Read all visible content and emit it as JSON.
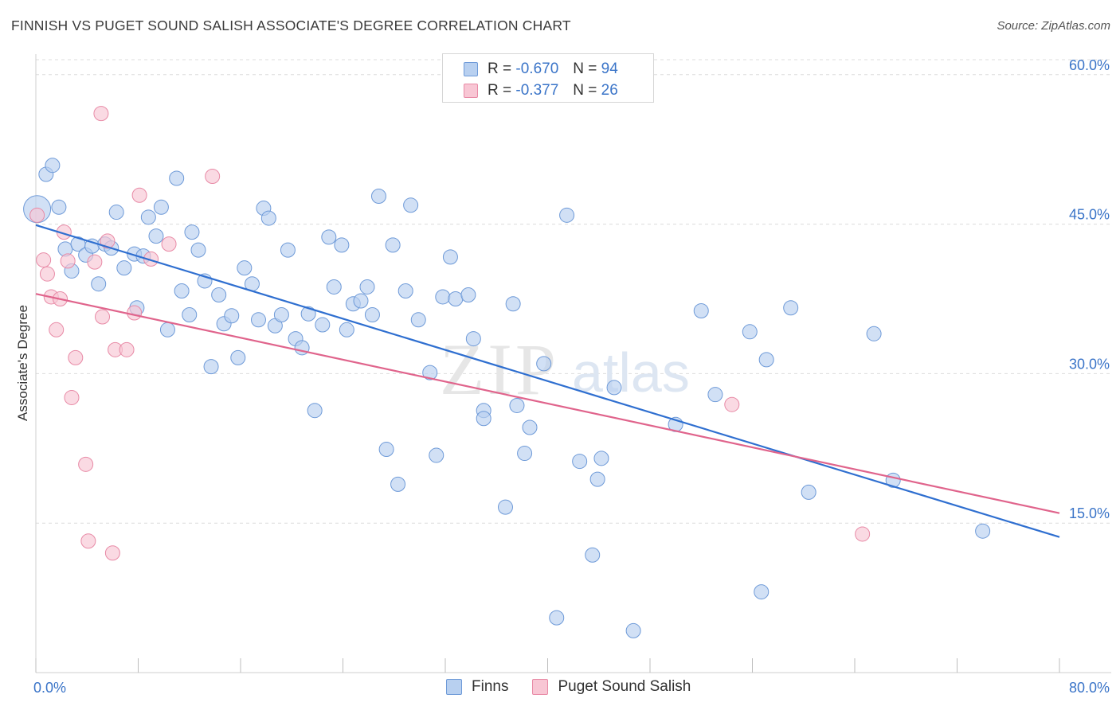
{
  "header": {
    "title": "FINNISH VS PUGET SOUND SALISH ASSOCIATE'S DEGREE CORRELATION CHART",
    "source": "Source: ZipAtlas.com"
  },
  "watermark": {
    "zip": "ZIP",
    "atlas": "atlas"
  },
  "legend_top": {
    "rows": [
      {
        "r_label": "R =",
        "r_value": "-0.670",
        "n_label": "N =",
        "n_value": "94"
      },
      {
        "r_label": "R =",
        "r_value": "-0.377",
        "n_label": "N =",
        "n_value": "26"
      }
    ]
  },
  "legend_bottom": {
    "items": [
      {
        "label": "Finns"
      },
      {
        "label": "Puget Sound Salish"
      }
    ]
  },
  "colors": {
    "finns_fill": "#b8d0f0",
    "finns_stroke": "#6e9ad8",
    "finns_line": "#2f6fd0",
    "salish_fill": "#f8c6d4",
    "salish_stroke": "#e88aa6",
    "salish_line": "#e0648c",
    "tick_label": "#3a74c8",
    "grid": "#dcdcdc"
  },
  "chart_data": {
    "type": "scatter",
    "title": "FINNISH VS PUGET SOUND SALISH ASSOCIATE'S DEGREE CORRELATION CHART",
    "xlabel": "",
    "ylabel": "Associate's Degree",
    "xlim": [
      0,
      80
    ],
    "ylim": [
      0,
      61.5
    ],
    "x_tick_labels": [
      "0.0%",
      "80.0%"
    ],
    "y_ticks": [
      15,
      30,
      45,
      60
    ],
    "y_tick_labels": [
      "15.0%",
      "30.0%",
      "45.0%",
      "60.0%"
    ],
    "grid": "horizontal dashed",
    "legend": "top-center",
    "series": [
      {
        "name": "Finns",
        "r": -0.67,
        "n": 94,
        "trend": {
          "x": [
            0,
            80
          ],
          "y": [
            44.9,
            13.6
          ]
        },
        "points": [
          {
            "x": 0.1,
            "y": 46.5,
            "big": true
          },
          {
            "x": 0.8,
            "y": 50.0
          },
          {
            "x": 1.3,
            "y": 50.9
          },
          {
            "x": 1.8,
            "y": 46.7
          },
          {
            "x": 2.3,
            "y": 42.5
          },
          {
            "x": 2.8,
            "y": 40.3
          },
          {
            "x": 3.3,
            "y": 43.0
          },
          {
            "x": 3.9,
            "y": 41.9
          },
          {
            "x": 4.4,
            "y": 42.8
          },
          {
            "x": 4.9,
            "y": 39.0
          },
          {
            "x": 5.4,
            "y": 43.0
          },
          {
            "x": 5.9,
            "y": 42.6
          },
          {
            "x": 6.3,
            "y": 46.2
          },
          {
            "x": 6.9,
            "y": 40.6
          },
          {
            "x": 7.7,
            "y": 42.0
          },
          {
            "x": 7.9,
            "y": 36.6
          },
          {
            "x": 8.4,
            "y": 41.8
          },
          {
            "x": 8.8,
            "y": 45.7
          },
          {
            "x": 9.4,
            "y": 43.8
          },
          {
            "x": 9.8,
            "y": 46.7
          },
          {
            "x": 10.3,
            "y": 34.4
          },
          {
            "x": 11.0,
            "y": 49.6
          },
          {
            "x": 11.4,
            "y": 38.3
          },
          {
            "x": 12.0,
            "y": 35.9
          },
          {
            "x": 12.2,
            "y": 44.2
          },
          {
            "x": 12.7,
            "y": 42.4
          },
          {
            "x": 13.2,
            "y": 39.3
          },
          {
            "x": 13.7,
            "y": 30.7
          },
          {
            "x": 14.3,
            "y": 37.9
          },
          {
            "x": 14.7,
            "y": 35.0
          },
          {
            "x": 15.3,
            "y": 35.8
          },
          {
            "x": 15.8,
            "y": 31.6
          },
          {
            "x": 16.3,
            "y": 40.6
          },
          {
            "x": 16.9,
            "y": 39.0
          },
          {
            "x": 17.4,
            "y": 35.4
          },
          {
            "x": 17.8,
            "y": 46.6
          },
          {
            "x": 18.2,
            "y": 45.6
          },
          {
            "x": 18.7,
            "y": 34.8
          },
          {
            "x": 19.2,
            "y": 35.9
          },
          {
            "x": 19.7,
            "y": 42.4
          },
          {
            "x": 20.3,
            "y": 33.5
          },
          {
            "x": 20.8,
            "y": 32.6
          },
          {
            "x": 21.3,
            "y": 36.0
          },
          {
            "x": 21.8,
            "y": 26.3
          },
          {
            "x": 22.4,
            "y": 34.9
          },
          {
            "x": 22.9,
            "y": 43.7
          },
          {
            "x": 23.3,
            "y": 38.7
          },
          {
            "x": 23.9,
            "y": 42.9
          },
          {
            "x": 24.3,
            "y": 34.4
          },
          {
            "x": 24.8,
            "y": 37.0
          },
          {
            "x": 25.4,
            "y": 37.3
          },
          {
            "x": 25.9,
            "y": 38.7
          },
          {
            "x": 26.3,
            "y": 35.9
          },
          {
            "x": 26.8,
            "y": 47.8
          },
          {
            "x": 27.4,
            "y": 22.4
          },
          {
            "x": 27.9,
            "y": 42.9
          },
          {
            "x": 28.3,
            "y": 18.9
          },
          {
            "x": 28.9,
            "y": 38.3
          },
          {
            "x": 29.3,
            "y": 46.9
          },
          {
            "x": 29.9,
            "y": 35.4
          },
          {
            "x": 30.8,
            "y": 30.1
          },
          {
            "x": 31.3,
            "y": 21.8
          },
          {
            "x": 31.8,
            "y": 37.7
          },
          {
            "x": 32.4,
            "y": 41.7
          },
          {
            "x": 32.8,
            "y": 37.5
          },
          {
            "x": 33.8,
            "y": 37.9
          },
          {
            "x": 34.2,
            "y": 33.5
          },
          {
            "x": 35.0,
            "y": 26.3
          },
          {
            "x": 35.0,
            "y": 25.5
          },
          {
            "x": 36.7,
            "y": 16.6
          },
          {
            "x": 37.3,
            "y": 37.0
          },
          {
            "x": 37.6,
            "y": 26.8
          },
          {
            "x": 38.2,
            "y": 22.0
          },
          {
            "x": 38.6,
            "y": 24.6
          },
          {
            "x": 39.7,
            "y": 31.0
          },
          {
            "x": 40.7,
            "y": 5.5
          },
          {
            "x": 41.5,
            "y": 45.9
          },
          {
            "x": 42.5,
            "y": 21.2
          },
          {
            "x": 43.5,
            "y": 11.8
          },
          {
            "x": 43.9,
            "y": 19.4
          },
          {
            "x": 44.2,
            "y": 21.5
          },
          {
            "x": 45.2,
            "y": 28.6
          },
          {
            "x": 46.7,
            "y": 4.2
          },
          {
            "x": 50.0,
            "y": 24.9
          },
          {
            "x": 52.0,
            "y": 36.3
          },
          {
            "x": 53.1,
            "y": 27.9
          },
          {
            "x": 55.8,
            "y": 34.2
          },
          {
            "x": 56.7,
            "y": 8.1
          },
          {
            "x": 57.1,
            "y": 31.4
          },
          {
            "x": 59.0,
            "y": 36.6
          },
          {
            "x": 60.4,
            "y": 18.1
          },
          {
            "x": 65.5,
            "y": 34.0
          },
          {
            "x": 67.0,
            "y": 19.3
          },
          {
            "x": 74.0,
            "y": 14.2
          }
        ]
      },
      {
        "name": "Puget Sound Salish",
        "r": -0.377,
        "n": 26,
        "trend": {
          "x": [
            0,
            80
          ],
          "y": [
            38.0,
            16.0
          ]
        },
        "points": [
          {
            "x": 0.1,
            "y": 45.9
          },
          {
            "x": 0.6,
            "y": 41.4
          },
          {
            "x": 0.9,
            "y": 40.0
          },
          {
            "x": 1.2,
            "y": 37.7
          },
          {
            "x": 1.6,
            "y": 34.4
          },
          {
            "x": 1.9,
            "y": 37.5
          },
          {
            "x": 2.2,
            "y": 44.2
          },
          {
            "x": 2.5,
            "y": 41.3
          },
          {
            "x": 2.8,
            "y": 27.6
          },
          {
            "x": 3.1,
            "y": 31.6
          },
          {
            "x": 3.9,
            "y": 20.9
          },
          {
            "x": 4.1,
            "y": 13.2
          },
          {
            "x": 4.6,
            "y": 41.2
          },
          {
            "x": 5.1,
            "y": 56.1
          },
          {
            "x": 5.2,
            "y": 35.7
          },
          {
            "x": 5.6,
            "y": 43.3
          },
          {
            "x": 6.0,
            "y": 12.0
          },
          {
            "x": 6.2,
            "y": 32.4
          },
          {
            "x": 7.1,
            "y": 32.4
          },
          {
            "x": 7.7,
            "y": 36.1
          },
          {
            "x": 8.1,
            "y": 47.9
          },
          {
            "x": 9.0,
            "y": 41.5
          },
          {
            "x": 10.4,
            "y": 43.0
          },
          {
            "x": 13.8,
            "y": 49.8
          },
          {
            "x": 54.4,
            "y": 26.9
          },
          {
            "x": 64.6,
            "y": 13.9
          }
        ]
      }
    ]
  }
}
